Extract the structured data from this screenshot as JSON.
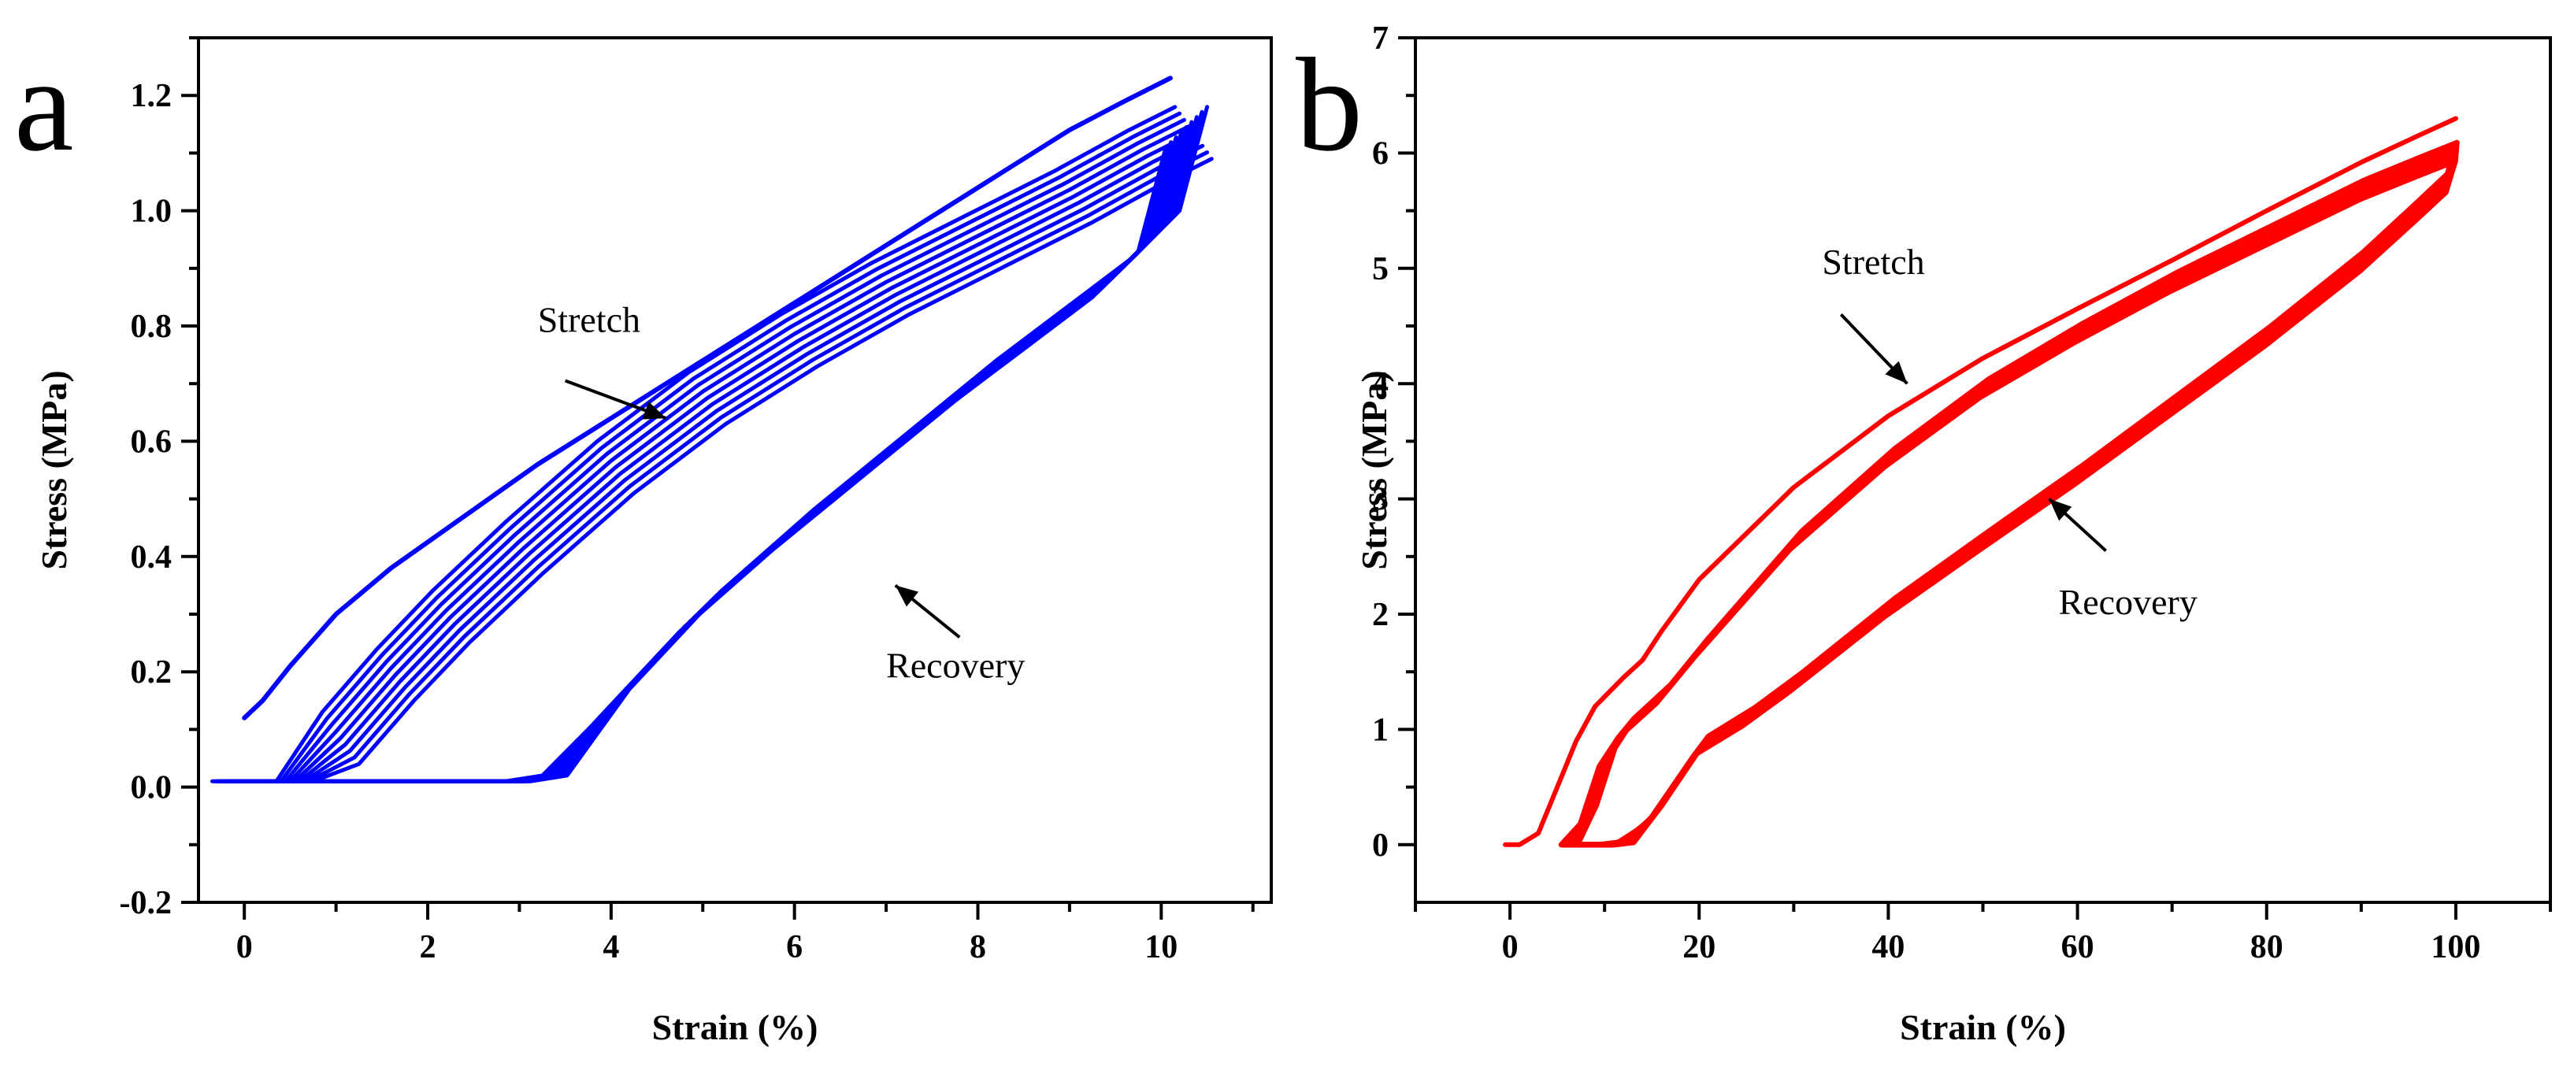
{
  "chart_data": [
    {
      "type": "line",
      "panel_label": "a",
      "xlabel": "Strain (%)",
      "ylabel": "Stress (MPa)",
      "xlim": [
        -0.5,
        11.2
      ],
      "ylim": [
        -0.2,
        1.3
      ],
      "x_ticks": [
        "0",
        "2",
        "4",
        "6",
        "8",
        "10"
      ],
      "y_ticks": [
        "-0.2",
        "0.0",
        "0.2",
        "0.4",
        "0.6",
        "0.8",
        "1.0",
        "1.2"
      ],
      "grid": false,
      "series_color": "#0000ff",
      "series": [
        {
          "role": "first-cycle",
          "cycles": 1,
          "x": [
            0.0,
            0.2,
            0.5,
            1.0,
            1.6,
            2.4,
            3.2,
            4.0,
            5.0,
            6.0,
            7.0,
            8.0,
            9.0,
            9.6,
            10.1
          ],
          "y": [
            0.12,
            0.15,
            0.21,
            0.3,
            0.38,
            0.47,
            0.56,
            0.64,
            0.74,
            0.84,
            0.94,
            1.04,
            1.14,
            1.19,
            1.23
          ]
        },
        {
          "role": "stretch-band",
          "cycles": 9,
          "x": [
            0.5,
            1.0,
            1.6,
            2.2,
            3.0,
            4.0,
            5.0,
            6.0,
            7.0,
            8.0,
            9.0,
            9.8,
            10.3
          ],
          "y": [
            0.01,
            0.09,
            0.2,
            0.3,
            0.42,
            0.56,
            0.68,
            0.78,
            0.87,
            0.95,
            1.03,
            1.1,
            1.14
          ]
        },
        {
          "role": "recovery-band",
          "cycles": 9,
          "x": [
            10.3,
            10.0,
            9.5,
            9.0,
            8.0,
            7.0,
            6.0,
            5.0,
            4.0,
            3.4,
            3.0,
            2.0,
            1.0,
            0.0,
            -0.2
          ],
          "y": [
            1.14,
            0.96,
            0.88,
            0.82,
            0.7,
            0.57,
            0.44,
            0.3,
            0.13,
            0.02,
            0.01,
            0.01,
            0.01,
            0.01,
            0.01
          ]
        }
      ],
      "annotations": [
        {
          "text": "Stretch",
          "x": 3.2,
          "y": 0.79,
          "arrow_from": [
            3.5,
            0.705
          ],
          "arrow_to": [
            4.6,
            0.64
          ]
        },
        {
          "text": "Recovery",
          "x": 7.0,
          "y": 0.19,
          "arrow_from": [
            7.8,
            0.26
          ],
          "arrow_to": [
            7.1,
            0.35
          ]
        }
      ]
    },
    {
      "type": "line",
      "panel_label": "b",
      "xlabel": "Strain (%)",
      "ylabel": "Stress (MPa)",
      "xlim": [
        -10,
        110
      ],
      "ylim": [
        -0.5,
        7
      ],
      "x_ticks": [
        "0",
        "20",
        "40",
        "60",
        "80",
        "100"
      ],
      "y_ticks": [
        "0",
        "1",
        "2",
        "3",
        "4",
        "5",
        "6",
        "7"
      ],
      "grid": false,
      "series_color": "#ff0000",
      "series": [
        {
          "role": "first-cycle",
          "cycles": 1,
          "x": [
            -0.5,
            1,
            3,
            5,
            7,
            9,
            12,
            14,
            16,
            20,
            30,
            40,
            50,
            60,
            70,
            80,
            90,
            96,
            100
          ],
          "y": [
            0,
            0,
            0.1,
            0.5,
            0.9,
            1.2,
            1.45,
            1.6,
            1.85,
            2.3,
            3.1,
            3.72,
            4.22,
            4.65,
            5.07,
            5.5,
            5.92,
            6.15,
            6.3
          ]
        },
        {
          "role": "stretch-band",
          "cycles": 9,
          "x": [
            6,
            8,
            10,
            12,
            14,
            16,
            20,
            30,
            40,
            50,
            60,
            70,
            80,
            90,
            96,
            100
          ],
          "y": [
            0,
            0.3,
            0.8,
            1.05,
            1.2,
            1.35,
            1.75,
            2.68,
            3.4,
            4.0,
            4.48,
            4.92,
            5.32,
            5.72,
            5.92,
            6.05
          ]
        },
        {
          "role": "recovery-band",
          "cycles": 9,
          "x": [
            100,
            99,
            96,
            90,
            80,
            70,
            60,
            50,
            40,
            30,
            25,
            20,
            15,
            12,
            10,
            6
          ],
          "y": [
            6.05,
            5.78,
            5.55,
            5.1,
            4.45,
            3.85,
            3.25,
            2.68,
            2.1,
            1.45,
            1.15,
            0.9,
            0.3,
            0.02,
            0,
            0
          ]
        }
      ],
      "annotations": [
        {
          "text": "Stretch",
          "x": 33,
          "y": 4.95,
          "arrow_from": [
            35,
            4.6
          ],
          "arrow_to": [
            42,
            4.0
          ]
        },
        {
          "text": "Recovery",
          "x": 58,
          "y": 2.0,
          "arrow_from": [
            63,
            2.55
          ],
          "arrow_to": [
            57,
            3.0
          ]
        }
      ]
    }
  ]
}
